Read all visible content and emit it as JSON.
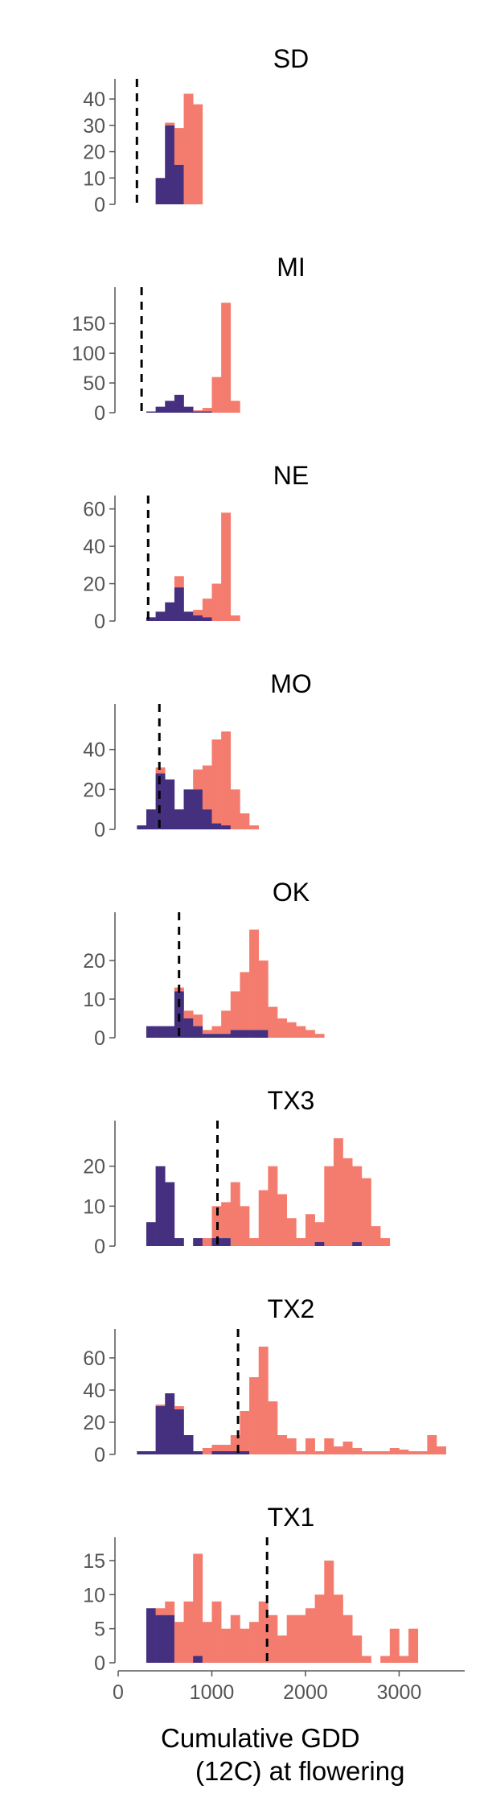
{
  "colors": {
    "late": "#f47c6e",
    "early": "#44307f"
  },
  "xlabel": [
    "Cumulative GDD",
    "(12C) at flowering"
  ],
  "chart_data": {
    "type": "bar",
    "subtype": "stacked histogram, faceted by site",
    "xlabel": "Cumulative GDD (12C) at flowering",
    "xlim": [
      0,
      3700
    ],
    "xticks": [
      0,
      1000,
      2000,
      3000
    ],
    "bin_width": 100,
    "grid": false,
    "legend": "none",
    "series_colors": {
      "late": "#f47c6e",
      "early": "#44307f"
    },
    "panels": [
      {
        "title": "SD",
        "ylim": [
          0,
          44
        ],
        "yticks": [
          0,
          10,
          20,
          30,
          40
        ],
        "vline": 200,
        "early": [
          [
            450,
            10
          ],
          [
            550,
            30
          ],
          [
            650,
            15
          ]
        ],
        "late": [
          [
            550,
            1
          ],
          [
            650,
            14
          ],
          [
            750,
            42
          ],
          [
            850,
            38
          ]
        ]
      },
      {
        "title": "MI",
        "ylim": [
          0,
          195
        ],
        "yticks": [
          0,
          50,
          100,
          150
        ],
        "vline": 250,
        "early": [
          [
            350,
            2
          ],
          [
            450,
            10
          ],
          [
            550,
            20
          ],
          [
            650,
            30
          ],
          [
            750,
            10
          ],
          [
            850,
            2
          ],
          [
            950,
            2
          ]
        ],
        "late": [
          [
            850,
            2
          ],
          [
            950,
            6
          ],
          [
            1050,
            60
          ],
          [
            1150,
            185
          ],
          [
            1250,
            20
          ]
        ]
      },
      {
        "title": "NE",
        "ylim": [
          0,
          62
        ],
        "yticks": [
          0,
          20,
          40,
          60
        ],
        "vline": 320,
        "early": [
          [
            350,
            2
          ],
          [
            450,
            5
          ],
          [
            550,
            10
          ],
          [
            650,
            18
          ],
          [
            750,
            5
          ],
          [
            850,
            3
          ],
          [
            950,
            2
          ]
        ],
        "late": [
          [
            650,
            6
          ],
          [
            850,
            3
          ],
          [
            950,
            10
          ],
          [
            1050,
            20
          ],
          [
            1150,
            58
          ],
          [
            1250,
            3
          ]
        ]
      },
      {
        "title": "MO",
        "ylim": [
          0,
          58
        ],
        "yticks": [
          0,
          20,
          40
        ],
        "vline": 440,
        "early": [
          [
            250,
            2
          ],
          [
            350,
            10
          ],
          [
            450,
            28
          ],
          [
            550,
            25
          ],
          [
            650,
            10
          ],
          [
            750,
            20
          ],
          [
            850,
            20
          ],
          [
            950,
            10
          ],
          [
            1050,
            3
          ],
          [
            1150,
            2
          ]
        ],
        "late": [
          [
            450,
            3
          ],
          [
            850,
            10
          ],
          [
            950,
            22
          ],
          [
            1050,
            42
          ],
          [
            1150,
            47
          ],
          [
            1250,
            20
          ],
          [
            1350,
            8
          ],
          [
            1450,
            2
          ]
        ]
      },
      {
        "title": "OK",
        "ylim": [
          0,
          30
        ],
        "yticks": [
          0,
          10,
          20
        ],
        "vline": 650,
        "early": [
          [
            350,
            3
          ],
          [
            450,
            3
          ],
          [
            550,
            3
          ],
          [
            650,
            12
          ],
          [
            750,
            5
          ],
          [
            850,
            3
          ],
          [
            950,
            1
          ],
          [
            1050,
            1
          ],
          [
            1150,
            1
          ],
          [
            1250,
            2
          ],
          [
            1350,
            2
          ],
          [
            1450,
            2
          ],
          [
            1550,
            2
          ]
        ],
        "late": [
          [
            650,
            1
          ],
          [
            750,
            2
          ],
          [
            850,
            3
          ],
          [
            950,
            1
          ],
          [
            1050,
            2
          ],
          [
            1150,
            6
          ],
          [
            1250,
            10
          ],
          [
            1350,
            15
          ],
          [
            1450,
            26
          ],
          [
            1550,
            18
          ],
          [
            1650,
            8
          ],
          [
            1750,
            5
          ],
          [
            1850,
            4
          ],
          [
            1950,
            3
          ],
          [
            2050,
            2
          ],
          [
            2150,
            1
          ]
        ]
      },
      {
        "title": "TX3",
        "ylim": [
          0,
          29
        ],
        "yticks": [
          0,
          10,
          20
        ],
        "vline": 1060,
        "early": [
          [
            350,
            6
          ],
          [
            450,
            20
          ],
          [
            550,
            16
          ],
          [
            650,
            2
          ],
          [
            850,
            2
          ],
          [
            1050,
            2
          ],
          [
            1150,
            2
          ],
          [
            2150,
            1
          ],
          [
            2550,
            1
          ]
        ],
        "late": [
          [
            950,
            2
          ],
          [
            1050,
            8
          ],
          [
            1150,
            9
          ],
          [
            1250,
            16
          ],
          [
            1350,
            10
          ],
          [
            1450,
            2
          ],
          [
            1550,
            14
          ],
          [
            1650,
            20
          ],
          [
            1750,
            13
          ],
          [
            1850,
            7
          ],
          [
            1950,
            2
          ],
          [
            2050,
            8
          ],
          [
            2150,
            5
          ],
          [
            2250,
            20
          ],
          [
            2350,
            27
          ],
          [
            2450,
            22
          ],
          [
            2550,
            19
          ],
          [
            2650,
            17
          ],
          [
            2750,
            5
          ],
          [
            2850,
            2
          ]
        ]
      },
      {
        "title": "TX2",
        "ylim": [
          0,
          72
        ],
        "yticks": [
          0,
          20,
          40,
          60
        ],
        "vline": 1280,
        "early": [
          [
            250,
            2
          ],
          [
            350,
            2
          ],
          [
            450,
            30
          ],
          [
            550,
            38
          ],
          [
            650,
            28
          ],
          [
            750,
            12
          ],
          [
            850,
            2
          ],
          [
            1050,
            2
          ],
          [
            1150,
            2
          ],
          [
            1250,
            2
          ],
          [
            1350,
            2
          ]
        ],
        "late": [
          [
            450,
            1
          ],
          [
            650,
            2
          ],
          [
            950,
            4
          ],
          [
            1050,
            4
          ],
          [
            1150,
            4
          ],
          [
            1250,
            10
          ],
          [
            1350,
            25
          ],
          [
            1450,
            48
          ],
          [
            1550,
            67
          ],
          [
            1650,
            33
          ],
          [
            1750,
            12
          ],
          [
            1850,
            10
          ],
          [
            1950,
            2
          ],
          [
            2050,
            10
          ],
          [
            2150,
            2
          ],
          [
            2250,
            10
          ],
          [
            2350,
            5
          ],
          [
            2450,
            8
          ],
          [
            2550,
            4
          ],
          [
            2650,
            2
          ],
          [
            2750,
            2
          ],
          [
            2850,
            2
          ],
          [
            2950,
            4
          ],
          [
            3050,
            3
          ],
          [
            3150,
            2
          ],
          [
            3250,
            2
          ],
          [
            3350,
            12
          ],
          [
            3450,
            5
          ]
        ]
      },
      {
        "title": "TX1",
        "ylim": [
          0,
          17
        ],
        "yticks": [
          0,
          5,
          10,
          15
        ],
        "vline": 1590,
        "early": [
          [
            350,
            8
          ],
          [
            450,
            7
          ],
          [
            550,
            7
          ],
          [
            850,
            1
          ]
        ],
        "late": [
          [
            450,
            1
          ],
          [
            550,
            2
          ],
          [
            650,
            6
          ],
          [
            750,
            9
          ],
          [
            850,
            15
          ],
          [
            950,
            6
          ],
          [
            1050,
            9
          ],
          [
            1150,
            5
          ],
          [
            1250,
            7
          ],
          [
            1350,
            5
          ],
          [
            1450,
            6
          ],
          [
            1550,
            9
          ],
          [
            1650,
            7
          ],
          [
            1750,
            4
          ],
          [
            1850,
            7
          ],
          [
            1950,
            7
          ],
          [
            2050,
            8
          ],
          [
            2150,
            10
          ],
          [
            2250,
            15
          ],
          [
            2350,
            10
          ],
          [
            2450,
            7
          ],
          [
            2550,
            4
          ],
          [
            2650,
            1
          ],
          [
            2850,
            1
          ],
          [
            2950,
            5
          ],
          [
            3050,
            1
          ],
          [
            3150,
            5
          ]
        ]
      }
    ]
  }
}
